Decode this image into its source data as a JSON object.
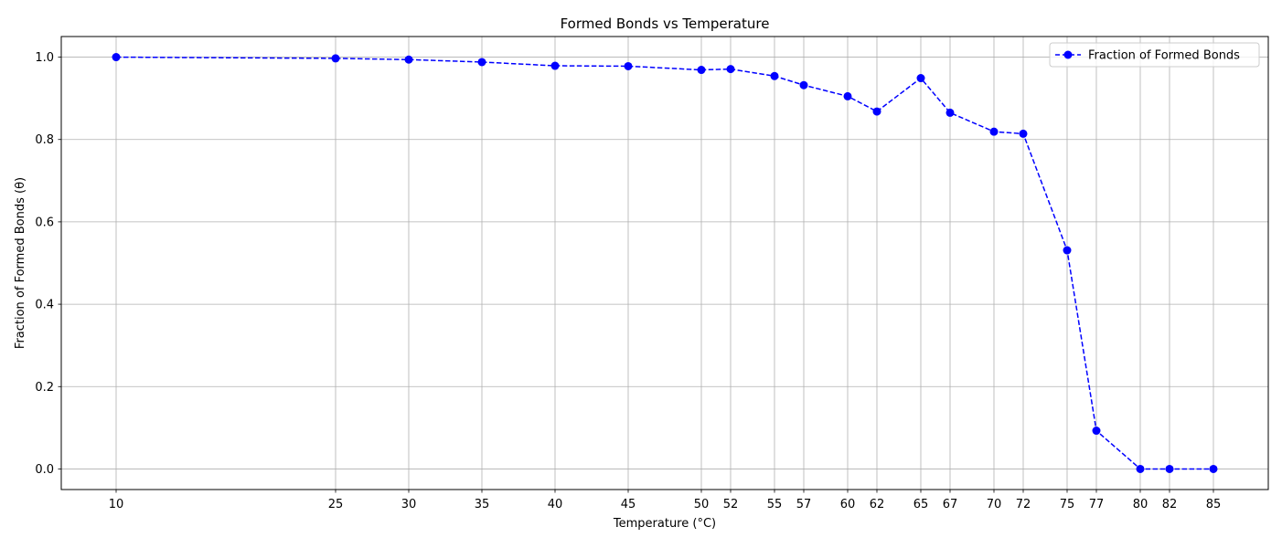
{
  "chart_data": {
    "type": "line",
    "title": "Formed Bonds vs Temperature",
    "xlabel": "Temperature (°C)",
    "ylabel": "Fraction of Formed Bonds (θ)",
    "x": [
      10,
      25,
      30,
      35,
      40,
      45,
      50,
      52,
      55,
      57,
      60,
      62,
      65,
      67,
      70,
      72,
      75,
      77,
      80,
      82,
      85
    ],
    "x_tick_labels": [
      "10",
      "25",
      "30",
      "35",
      "40",
      "45",
      "50",
      "52",
      "55",
      "57",
      "60",
      "62",
      "65",
      "67",
      "70",
      "72",
      "75",
      "77",
      "80",
      "82",
      "85"
    ],
    "series": [
      {
        "name": "Fraction of Formed Bonds",
        "values": [
          1.0,
          0.997,
          0.994,
          0.988,
          0.979,
          0.978,
          0.969,
          0.971,
          0.954,
          0.932,
          0.905,
          0.868,
          0.949,
          0.865,
          0.819,
          0.814,
          0.531,
          0.093,
          0.0,
          0.0,
          0.0
        ],
        "color": "#0000ff",
        "line_style": "dashed",
        "marker": "circle"
      }
    ],
    "y_ticks": [
      0.0,
      0.2,
      0.4,
      0.6,
      0.8,
      1.0
    ],
    "y_tick_labels": [
      "0.0",
      "0.2",
      "0.4",
      "0.6",
      "0.8",
      "1.0"
    ],
    "xlim": [
      6.25,
      88.75
    ],
    "ylim": [
      -0.05,
      1.05
    ],
    "grid": true,
    "legend_position": "top-right"
  }
}
